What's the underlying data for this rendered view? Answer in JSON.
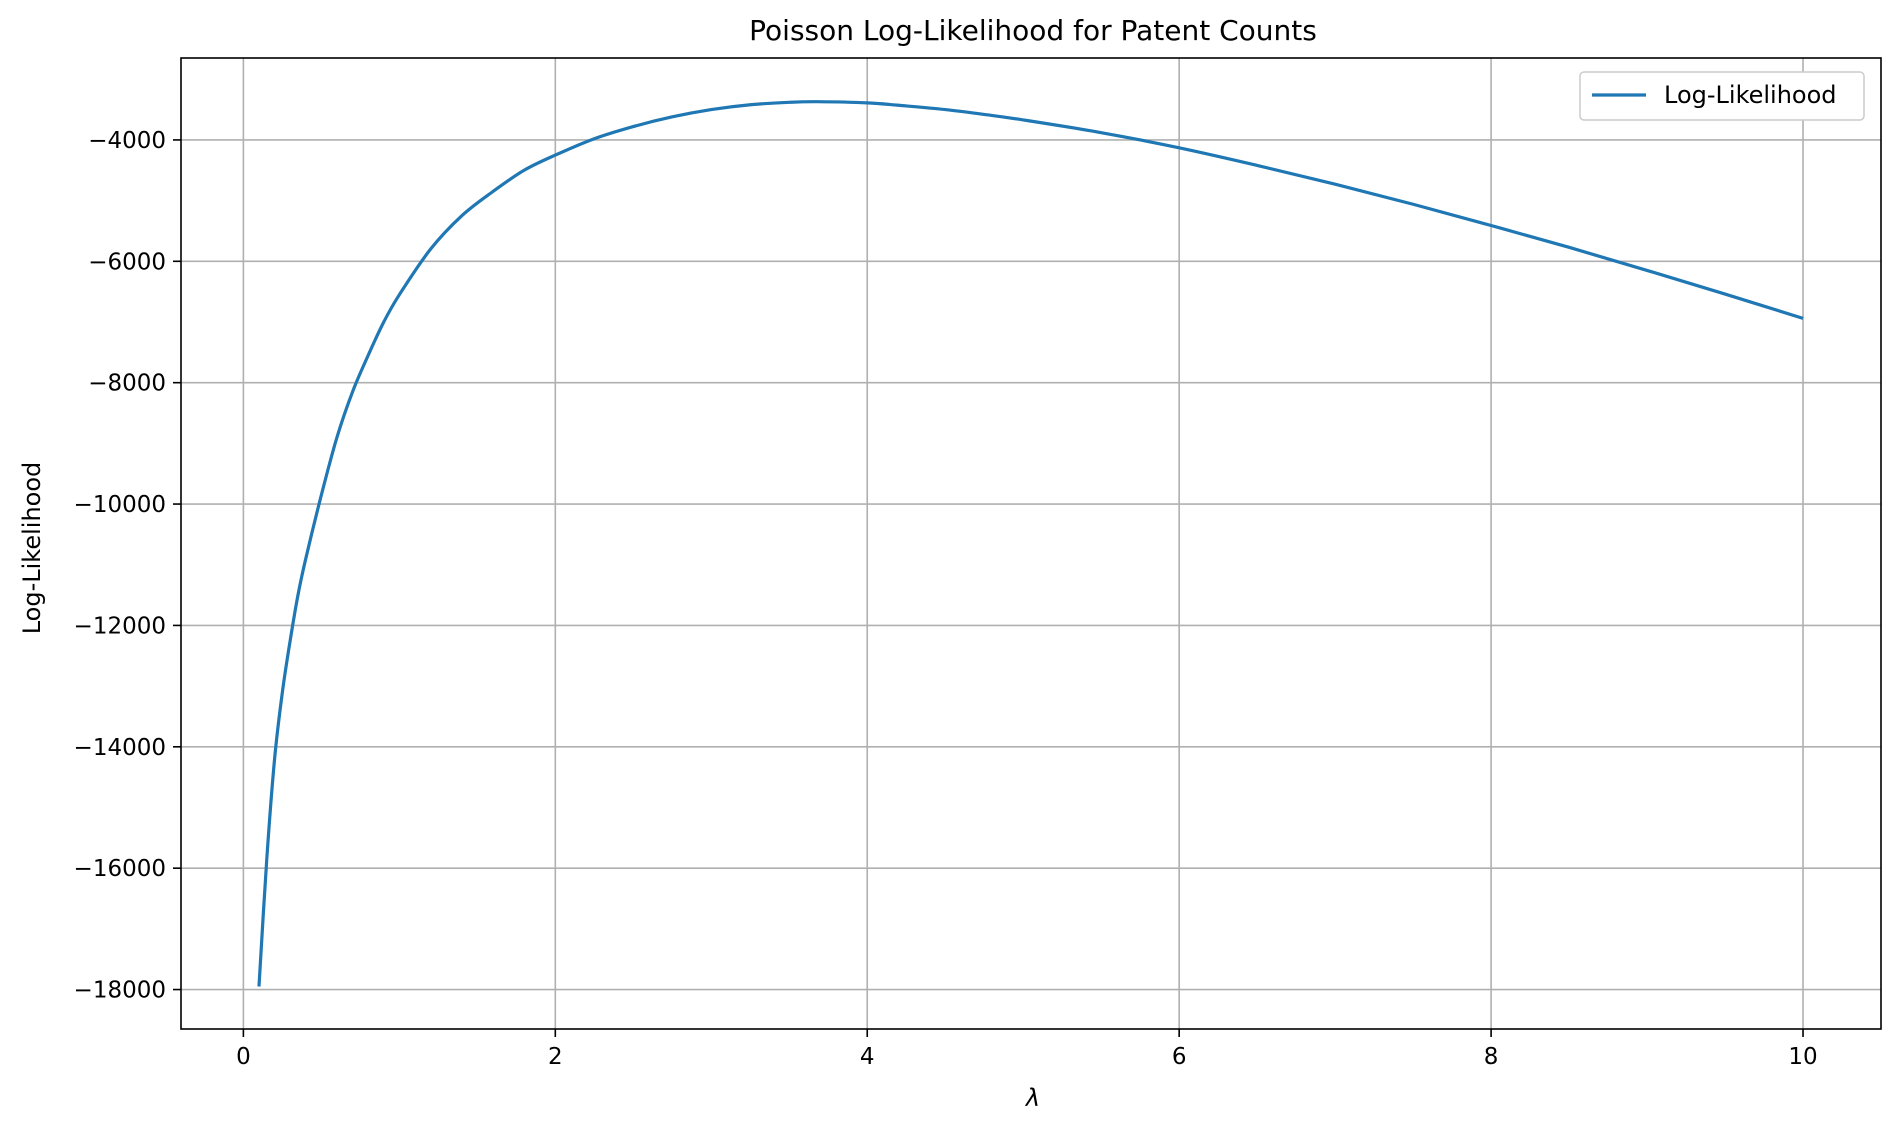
{
  "chart_data": {
    "type": "line",
    "title": "Poisson Log-Likelihood for Patent Counts",
    "xlabel": "λ",
    "ylabel": "Log-Likelihood",
    "xlim": [
      -0.4,
      10.5
    ],
    "ylim": [
      -18650,
      -2650
    ],
    "xticks": [
      0,
      2,
      4,
      6,
      8,
      10
    ],
    "xtick_labels": [
      "0",
      "2",
      "4",
      "6",
      "8",
      "10"
    ],
    "yticks": [
      -18000,
      -16000,
      -14000,
      -12000,
      -10000,
      -8000,
      -6000,
      -4000
    ],
    "ytick_labels": [
      "−18000",
      "−16000",
      "−14000",
      "−12000",
      "−10000",
      "−8000",
      "−6000",
      "−4000"
    ],
    "grid": true,
    "legend": {
      "position": "top-right",
      "entries": [
        "Log-Likelihood"
      ]
    },
    "series": [
      {
        "name": "Log-Likelihood",
        "color": "#1f77b4",
        "x": [
          0.1,
          0.15,
          0.2,
          0.25,
          0.3,
          0.35,
          0.4,
          0.5,
          0.6,
          0.7,
          0.8,
          0.9,
          1.0,
          1.2,
          1.4,
          1.6,
          1.8,
          2.0,
          2.25,
          2.5,
          2.75,
          3.0,
          3.25,
          3.5,
          3.68,
          4.0,
          4.25,
          4.5,
          4.75,
          5.0,
          5.5,
          6.0,
          6.5,
          7.0,
          7.5,
          8.0,
          8.5,
          9.0,
          9.5,
          10.0
        ],
        "y": [
          -17950,
          -15850,
          -14200,
          -13100,
          -12250,
          -11500,
          -10900,
          -9850,
          -8900,
          -8150,
          -7550,
          -7000,
          -6550,
          -5800,
          -5250,
          -4850,
          -4500,
          -4250,
          -3980,
          -3780,
          -3620,
          -3500,
          -3420,
          -3380,
          -3370,
          -3390,
          -3440,
          -3500,
          -3580,
          -3670,
          -3880,
          -4130,
          -4420,
          -4730,
          -5060,
          -5410,
          -5770,
          -6150,
          -6540,
          -6940
        ]
      }
    ]
  }
}
